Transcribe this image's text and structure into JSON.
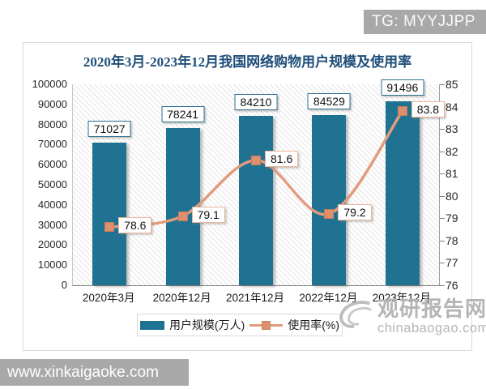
{
  "watermarks": {
    "tg_badge": "TG: MYYJJPP",
    "site_cn": "观研报告网",
    "site_en": "chinabaogao.com",
    "bottom_url": "www.xinkaigaoke.com"
  },
  "chart_data": {
    "type": "bar",
    "title": "2020年3月-2023年12月我国网络购物用户规模及使用率",
    "categories": [
      "2020年3月",
      "2020年12月",
      "2021年12月",
      "2022年12月",
      "2023年12月"
    ],
    "series": [
      {
        "name": "用户规模(万人)",
        "type": "bar",
        "axis": "left",
        "color": "#1F7291",
        "values": [
          71027,
          78241,
          84210,
          84529,
          91496
        ]
      },
      {
        "name": "使用率(%)",
        "type": "line",
        "axis": "right",
        "color": "#E09C7F",
        "marker_color": "#DD9070",
        "values": [
          78.6,
          79.1,
          81.6,
          79.2,
          83.8
        ]
      }
    ],
    "left_axis": {
      "min": 0,
      "max": 100000,
      "step": 10000,
      "tick_labels": [
        "100000",
        "90000",
        "80000",
        "70000",
        "60000",
        "50000",
        "40000",
        "30000",
        "20000",
        "10000",
        "0"
      ]
    },
    "right_axis": {
      "min": 76,
      "max": 85,
      "step": 1,
      "tick_labels": [
        "85",
        "84",
        "83",
        "82",
        "81",
        "80",
        "79",
        "78",
        "77",
        "76"
      ]
    },
    "grid": false,
    "legend_position": "bottom",
    "plot_background": "diagonal-hatch"
  }
}
